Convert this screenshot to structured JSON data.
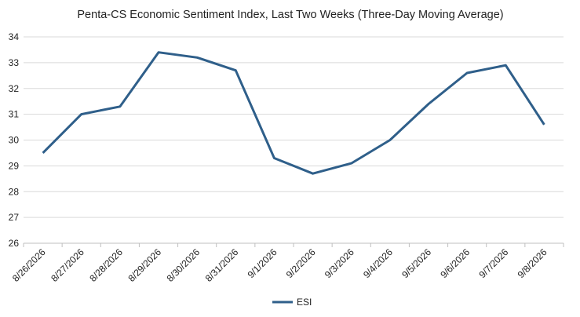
{
  "chart_data": {
    "type": "line",
    "title": "Penta-CS Economic Sentiment Index, Last Two Weeks (Three-Day Moving Average)",
    "xlabel": "",
    "ylabel": "",
    "categories": [
      "8/26/2026",
      "8/27/2026",
      "8/28/2026",
      "8/29/2026",
      "8/30/2026",
      "8/31/2026",
      "9/1/2026",
      "9/2/2026",
      "9/3/2026",
      "9/4/2026",
      "9/5/2026",
      "9/6/2026",
      "9/7/2026",
      "9/8/2026"
    ],
    "series": [
      {
        "name": "ESI",
        "color": "#2f5f8a",
        "values": [
          29.5,
          31.0,
          31.3,
          33.4,
          33.2,
          32.7,
          29.3,
          28.7,
          29.1,
          30.0,
          31.4,
          32.6,
          32.9,
          30.6
        ]
      }
    ],
    "ylim": [
      26,
      34
    ],
    "yticks": [
      26,
      27,
      28,
      29,
      30,
      31,
      32,
      33,
      34
    ],
    "grid": true,
    "legend_position": "bottom-center"
  }
}
